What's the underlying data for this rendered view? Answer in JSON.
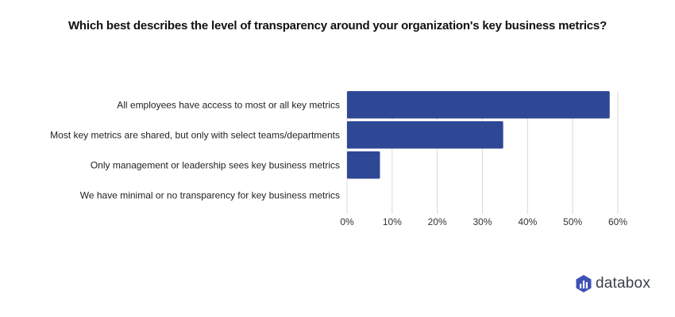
{
  "chart_data": {
    "type": "bar",
    "orientation": "horizontal",
    "title": "Which best describes the level of transparency around your organization's key business metrics?",
    "categories": [
      "All employees have access to most or all key metrics",
      "Most key metrics are shared, but only with select teams/departments",
      "Only management or leadership sees key business metrics",
      "We have minimal or no transparency for key business metrics"
    ],
    "values": [
      58.2,
      34.6,
      7.3,
      0
    ],
    "xlabel": "",
    "ylabel": "",
    "xlim": [
      0,
      60
    ],
    "x_ticks": [
      0,
      10,
      20,
      30,
      40,
      50,
      60
    ],
    "x_tick_labels": [
      "0%",
      "10%",
      "20%",
      "30%",
      "40%",
      "50%",
      "60%"
    ],
    "grid": true,
    "legend": "none",
    "bar_color": "#2e4896",
    "grid_color": "#d9d9d9"
  },
  "branding": {
    "logo_text": "databox",
    "logo_icon": "databox-bar-icon",
    "logo_color": "#3f51b5"
  }
}
